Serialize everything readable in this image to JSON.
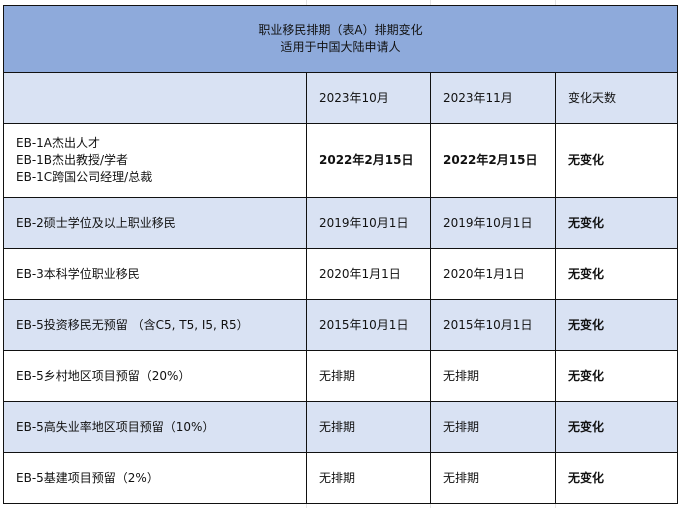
{
  "table": {
    "title_line1": "职业移民排期（表A）排期变化",
    "title_line2": "适用于中国大陆申请人",
    "headers": [
      "",
      "2023年10月",
      "2023年11月",
      "变化天数"
    ],
    "rows": [
      {
        "category": [
          "EB-1A杰出人才",
          "EB-1B杰出教授/学者",
          "EB-1C跨国公司经理/总裁"
        ],
        "oct": "2022年2月15日",
        "nov": "2022年2月15日",
        "change": "无变化"
      },
      {
        "category": [
          "EB-2硕士学位及以上职业移民"
        ],
        "oct": "2019年10月1日",
        "nov": "2019年10月1日",
        "change": "无变化"
      },
      {
        "category": [
          "EB-3本科学位职业移民"
        ],
        "oct": "2020年1月1日",
        "nov": "2020年1月1日",
        "change": "无变化"
      },
      {
        "category": [
          "EB-5投资移民无预留 （含C5, T5, I5, R5）"
        ],
        "oct": "2015年10月1日",
        "nov": "2015年10月1日",
        "change": "无变化"
      },
      {
        "category": [
          "EB-5乡村地区项目预留（20%）"
        ],
        "oct": "无排期",
        "nov": "无排期",
        "change": "无变化"
      },
      {
        "category": [
          "EB-5高失业率地区项目预留（10%）"
        ],
        "oct": "无排期",
        "nov": "无排期",
        "change": "无变化"
      },
      {
        "category": [
          "EB-5基建项目预留（2%）"
        ],
        "oct": "无排期",
        "nov": "无排期",
        "change": "无变化"
      }
    ]
  },
  "colors": {
    "title_bg": "#8eaadb",
    "shade_bg": "#d9e2f3"
  }
}
